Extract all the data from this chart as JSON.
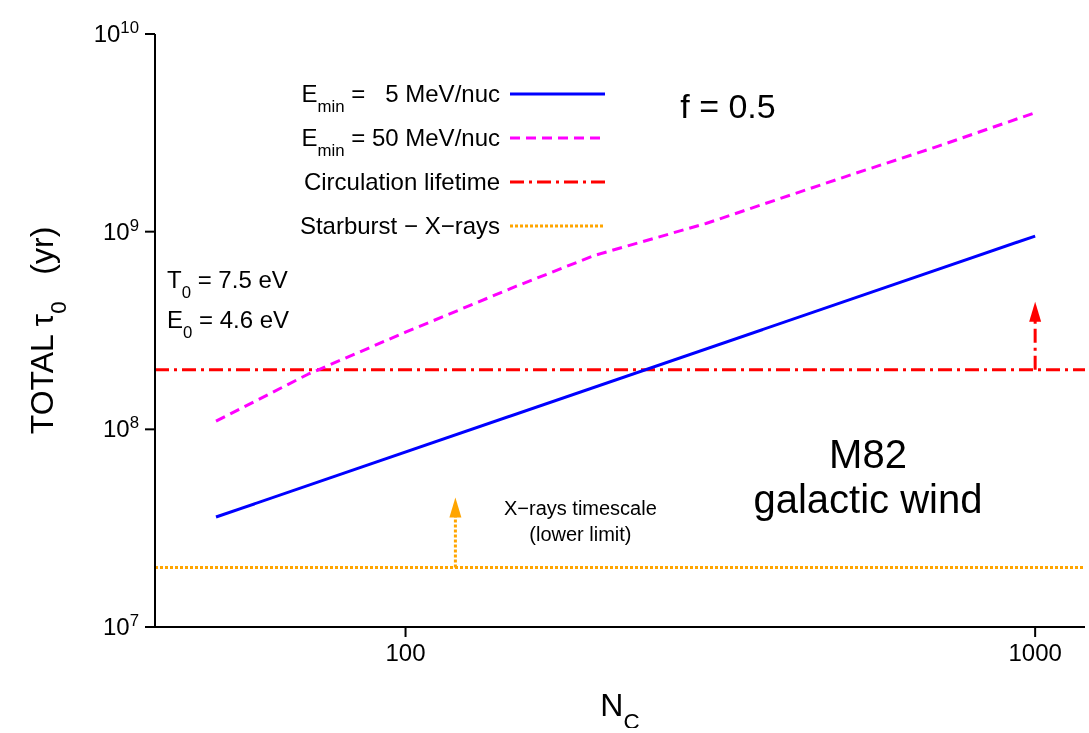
{
  "chart_data": {
    "type": "line",
    "xlabel": "N$_{C}$",
    "ylabel": "TOTAL τ$_{0}$   (yr)",
    "log": "xy",
    "xlim": [
      40,
      1200
    ],
    "xticks": [
      100,
      1000
    ],
    "ylim": [
      10000000.0,
      10000000000.0
    ],
    "yticks": [
      {
        "value": 10000000.0,
        "label": "10$^{7}$"
      },
      {
        "value": 100000000.0,
        "label": "10$^{8}$"
      },
      {
        "value": 1000000000.0,
        "label": "10$^{9}$"
      },
      {
        "value": 10000000000.0,
        "label": "10$^{10}$"
      }
    ],
    "grid": false,
    "legend": "top left",
    "marker": "none",
    "series": [
      {
        "name": "E$_{min}$ =   5 MeV/nuc",
        "color": "#0000ff",
        "line_style": "solid",
        "x": [
          50,
          1000
        ],
        "values": [
          36000000.0,
          950000000.0
        ]
      },
      {
        "name": "E$_{min}$ = 50 MeV/nuc",
        "color": "#ff00ff",
        "line_style": "dashed",
        "x": [
          50,
          70,
          100,
          150,
          200,
          300,
          500,
          700,
          1000
        ],
        "values": [
          110000000.0,
          190000000.0,
          310000000.0,
          530000000.0,
          760000000.0,
          1100000000.0,
          1900000000.0,
          2700000000.0,
          4000000000.0
        ]
      }
    ],
    "ref_lines": [
      {
        "axis": "y",
        "value": 200000000.0,
        "label": "Circulation lifetime",
        "color": "#ff0000",
        "line_style": "dashdot"
      },
      {
        "axis": "y",
        "value": 20000000.0,
        "label": "Starburst − X−rays",
        "color": "#ffa500",
        "line_style": "dotted"
      }
    ],
    "annotations": [
      "f = 0.5",
      "T$_{0}$ = 7.5 eV",
      "E$_{0}$ = 4.6 eV",
      "M82",
      "galactic wind",
      {
        "text": "X−rays timescale\n(lower limit)",
        "x": 120,
        "y": 20000000.0
      }
    ]
  }
}
